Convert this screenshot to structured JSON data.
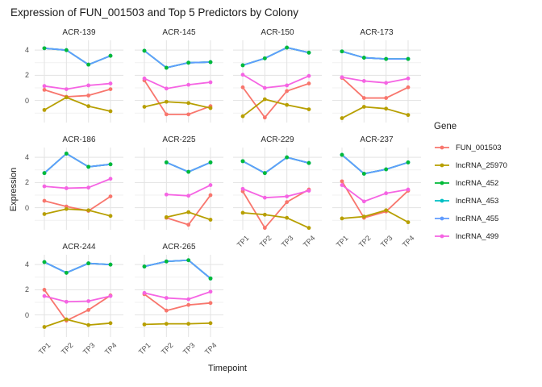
{
  "title": "Expression of FUN_001503 and Top 5 Predictors by Colony",
  "legend": {
    "title": "Gene"
  },
  "chart_data": {
    "type": "line",
    "title": "Expression of FUN_001503 and Top 5 Predictors by Colony",
    "xlabel": "Timepoint",
    "ylabel": "Expression",
    "x_categories": [
      "TP1",
      "TP2",
      "TP3",
      "TP4"
    ],
    "y_ticks": [
      0,
      2,
      4
    ],
    "ylim": [
      -1.75,
      4.78
    ],
    "grid": "on",
    "legend_position": "right",
    "gene_order": [
      "FUN_001503",
      "lncRNA_25970",
      "lncRNA_452",
      "lncRNA_453",
      "lncRNA_455",
      "lncRNA_499"
    ],
    "series_colors": {
      "FUN_001503": "#F8766D",
      "lncRNA_25970": "#B79F00",
      "lncRNA_452": "#00BA38",
      "lncRNA_453": "#00BFC4",
      "lncRNA_455": "#619CFF",
      "lncRNA_499": "#F564E3"
    },
    "facets": [
      {
        "colony": "ACR-139",
        "series": {
          "FUN_001503": [
            0.85,
            0.3,
            0.4,
            0.9
          ],
          "lncRNA_25970": [
            -0.75,
            0.25,
            -0.45,
            -0.85
          ],
          "lncRNA_452": [
            4.15,
            4.0,
            2.85,
            3.55
          ],
          "lncRNA_453": [
            4.15,
            4.0,
            2.85,
            3.55
          ],
          "lncRNA_455": [
            4.15,
            4.0,
            2.85,
            3.55
          ],
          "lncRNA_499": [
            1.15,
            0.9,
            1.2,
            1.35
          ]
        }
      },
      {
        "colony": "ACR-145",
        "series": {
          "FUN_001503": [
            1.6,
            -1.1,
            -1.1,
            -0.45
          ],
          "lncRNA_25970": [
            -0.5,
            -0.1,
            -0.2,
            -0.6
          ],
          "lncRNA_452": [
            3.95,
            2.6,
            3.0,
            3.05
          ],
          "lncRNA_453": [
            3.95,
            2.6,
            3.0,
            3.05
          ],
          "lncRNA_455": [
            3.95,
            2.6,
            3.0,
            3.05
          ],
          "lncRNA_499": [
            1.75,
            0.95,
            1.25,
            1.45
          ]
        }
      },
      {
        "colony": "ACR-150",
        "series": {
          "FUN_001503": [
            1.05,
            -1.35,
            0.75,
            1.35
          ],
          "lncRNA_25970": [
            -1.25,
            0.1,
            -0.35,
            -0.7
          ],
          "lncRNA_452": [
            2.8,
            3.35,
            4.2,
            3.8
          ],
          "lncRNA_453": [
            2.8,
            3.35,
            4.2,
            3.8
          ],
          "lncRNA_455": [
            2.8,
            3.35,
            4.2,
            3.8
          ],
          "lncRNA_499": [
            2.05,
            1.0,
            1.2,
            1.95
          ]
        }
      },
      {
        "colony": "ACR-173",
        "series": {
          "FUN_001503": [
            1.8,
            0.2,
            0.2,
            1.05
          ],
          "lncRNA_25970": [
            -1.4,
            -0.5,
            -0.65,
            -1.15
          ],
          "lncRNA_452": [
            3.9,
            3.4,
            3.3,
            3.3
          ],
          "lncRNA_453": [
            3.9,
            3.4,
            3.3,
            3.3
          ],
          "lncRNA_455": [
            3.9,
            3.4,
            3.3,
            3.3
          ],
          "lncRNA_499": [
            1.85,
            1.55,
            1.4,
            1.75
          ]
        }
      },
      {
        "colony": "ACR-186",
        "series": {
          "FUN_001503": [
            0.55,
            0.1,
            -0.25,
            0.9
          ],
          "lncRNA_25970": [
            -0.5,
            -0.1,
            -0.2,
            -0.65
          ],
          "lncRNA_452": [
            2.75,
            4.3,
            3.25,
            3.45
          ],
          "lncRNA_453": [
            2.75,
            4.3,
            3.25,
            3.45
          ],
          "lncRNA_455": [
            2.75,
            4.3,
            3.25,
            3.45
          ],
          "lncRNA_499": [
            1.7,
            1.55,
            1.6,
            2.3
          ]
        }
      },
      {
        "colony": "ACR-225",
        "series": {
          "FUN_001503": [
            null,
            -0.8,
            -1.35,
            1.0
          ],
          "lncRNA_25970": [
            null,
            -0.75,
            -0.35,
            -0.95
          ],
          "lncRNA_452": [
            null,
            3.6,
            2.85,
            3.6
          ],
          "lncRNA_453": [
            null,
            3.6,
            2.85,
            3.6
          ],
          "lncRNA_455": [
            null,
            3.6,
            2.85,
            3.6
          ],
          "lncRNA_499": [
            null,
            1.05,
            0.95,
            1.8
          ]
        }
      },
      {
        "colony": "ACR-229",
        "series": {
          "FUN_001503": [
            1.3,
            -1.6,
            0.45,
            1.45
          ],
          "lncRNA_25970": [
            -0.4,
            -0.55,
            -0.8,
            -1.6
          ],
          "lncRNA_452": [
            3.7,
            2.75,
            4.0,
            3.55
          ],
          "lncRNA_453": [
            3.7,
            2.75,
            4.0,
            3.55
          ],
          "lncRNA_455": [
            3.7,
            2.75,
            4.0,
            3.55
          ],
          "lncRNA_499": [
            1.5,
            0.8,
            0.9,
            1.35
          ]
        }
      },
      {
        "colony": "ACR-237",
        "series": {
          "FUN_001503": [
            2.1,
            -0.8,
            -0.3,
            1.35
          ],
          "lncRNA_25970": [
            -0.85,
            -0.7,
            -0.2,
            -1.15
          ],
          "lncRNA_452": [
            4.2,
            2.7,
            3.05,
            3.6
          ],
          "lncRNA_453": [
            4.2,
            2.7,
            3.05,
            3.6
          ],
          "lncRNA_455": [
            4.2,
            2.7,
            3.05,
            3.6
          ],
          "lncRNA_499": [
            1.8,
            0.5,
            1.15,
            1.45
          ]
        }
      },
      {
        "colony": "ACR-244",
        "series": {
          "FUN_001503": [
            2.0,
            -0.45,
            0.4,
            1.55
          ],
          "lncRNA_25970": [
            -0.95,
            -0.35,
            -0.8,
            -0.65
          ],
          "lncRNA_452": [
            4.2,
            3.35,
            4.1,
            4.0
          ],
          "lncRNA_453": [
            4.2,
            3.35,
            4.1,
            4.0
          ],
          "lncRNA_455": [
            4.2,
            3.35,
            4.1,
            4.0
          ],
          "lncRNA_499": [
            1.5,
            1.05,
            1.1,
            1.5
          ]
        }
      },
      {
        "colony": "ACR-265",
        "series": {
          "FUN_001503": [
            1.65,
            0.35,
            0.8,
            0.95
          ],
          "lncRNA_25970": [
            -0.75,
            -0.7,
            -0.7,
            -0.65
          ],
          "lncRNA_452": [
            3.85,
            4.25,
            4.35,
            2.9
          ],
          "lncRNA_453": [
            3.85,
            4.25,
            4.35,
            2.9
          ],
          "lncRNA_455": [
            3.85,
            4.25,
            4.35,
            2.9
          ],
          "lncRNA_499": [
            1.75,
            1.35,
            1.25,
            1.85
          ]
        }
      }
    ]
  }
}
